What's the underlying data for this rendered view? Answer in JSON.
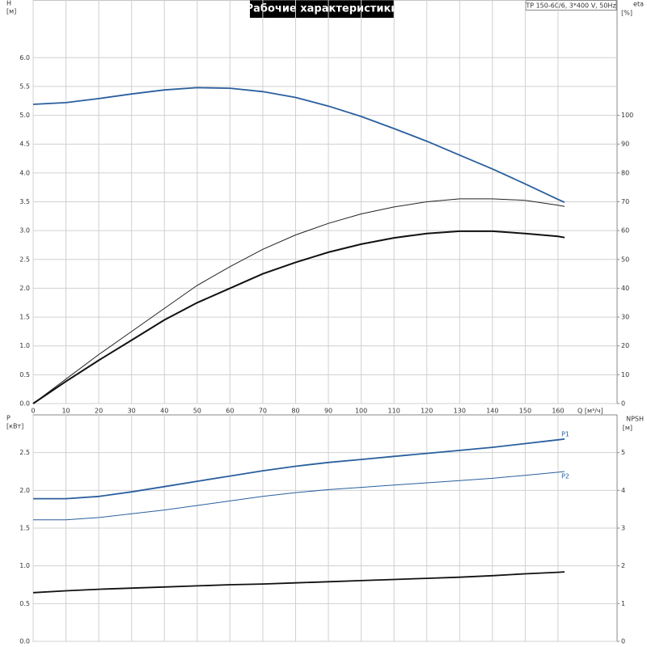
{
  "title": "Рабочие характеристики",
  "annotation": "TP 150-60/6, 3*400 V, 50Hz",
  "chart_data": [
    {
      "type": "line",
      "ylabel": "H",
      "yunit": "[м]",
      "y2label": "eta",
      "y2unit": "[%]",
      "xlabel": "Q [м³/ч]",
      "xlim": [
        0,
        178
      ],
      "xticks": [
        0,
        10,
        20,
        30,
        40,
        50,
        60,
        70,
        80,
        90,
        100,
        110,
        120,
        130,
        140,
        150,
        160
      ],
      "ylim": [
        0,
        7
      ],
      "yticks": [
        {
          "value": 0,
          "label": "0.0"
        },
        0.5,
        {
          "value": 1,
          "label": "1.0"
        },
        1.5,
        {
          "value": 2,
          "label": "2.0"
        },
        2.5,
        {
          "value": 3,
          "label": "3.0"
        },
        3.5,
        {
          "value": 4,
          "label": "4.0"
        },
        4.5,
        {
          "value": 5,
          "label": "5.0"
        },
        5.5,
        {
          "value": 6,
          "label": "6.0"
        }
      ],
      "y2lim": [
        0,
        140
      ],
      "y2ticks": [
        0,
        10,
        20,
        30,
        40,
        50,
        60,
        70,
        80,
        90,
        100
      ],
      "grid": true,
      "x": [
        0,
        10,
        20,
        30,
        40,
        50,
        60,
        70,
        80,
        90,
        100,
        110,
        120,
        130,
        140,
        150,
        160,
        162
      ],
      "series": [
        {
          "color": "#2a5f9e",
          "width": 1.8,
          "values": [
            5.19,
            5.22,
            5.29,
            5.37,
            5.44,
            5.48,
            5.47,
            5.41,
            5.31,
            5.16,
            4.98,
            4.77,
            4.55,
            4.31,
            4.07,
            3.81,
            3.54,
            3.49
          ]
        },
        {
          "color": "#222222",
          "width": 1,
          "axis": "y2",
          "values": [
            0,
            8.5,
            17,
            25,
            33,
            41,
            47.5,
            53.5,
            58.5,
            62.5,
            65.8,
            68.2,
            70,
            71,
            71,
            70.5,
            68.8,
            68.4
          ]
        },
        {
          "color": "#111111",
          "width": 2,
          "axis": "y2",
          "values": [
            0,
            7.7,
            15,
            22,
            29,
            35,
            40,
            45,
            49,
            52.5,
            55.3,
            57.5,
            59,
            59.8,
            59.8,
            59,
            58,
            57.6
          ]
        }
      ]
    },
    {
      "type": "line",
      "ylabel": "P",
      "yunit": "[кВт]",
      "y2label": "NPSH",
      "y2unit": "[м]",
      "ylim": [
        0,
        3
      ],
      "yticks": [
        {
          "value": 0,
          "label": "0.0"
        },
        0.5,
        {
          "value": 1,
          "label": "1.0"
        },
        1.5,
        {
          "value": 2,
          "label": "2.0"
        },
        2.5
      ],
      "y2lim": [
        0,
        6
      ],
      "y2ticks": [
        0,
        1,
        2,
        3,
        4,
        5
      ],
      "grid": true,
      "x": [
        0,
        10,
        20,
        30,
        40,
        50,
        60,
        70,
        80,
        90,
        100,
        110,
        120,
        130,
        140,
        150,
        160,
        162
      ],
      "series": [
        {
          "name": "P1",
          "color": "#2a5f9e",
          "width": 1.8,
          "values": [
            1.89,
            1.89,
            1.92,
            1.98,
            2.05,
            2.12,
            2.19,
            2.26,
            2.32,
            2.37,
            2.41,
            2.45,
            2.49,
            2.53,
            2.57,
            2.62,
            2.67,
            2.68
          ]
        },
        {
          "name": "P2",
          "color": "#2a5f9e",
          "width": 1,
          "values": [
            1.61,
            1.61,
            1.64,
            1.69,
            1.74,
            1.8,
            1.86,
            1.92,
            1.97,
            2.01,
            2.04,
            2.07,
            2.1,
            2.13,
            2.16,
            2.2,
            2.24,
            2.25
          ]
        },
        {
          "color": "#111111",
          "width": 1.8,
          "axis": "y2",
          "values": [
            1.29,
            1.34,
            1.38,
            1.41,
            1.44,
            1.47,
            1.5,
            1.52,
            1.55,
            1.58,
            1.61,
            1.64,
            1.67,
            1.7,
            1.74,
            1.79,
            1.83,
            1.84
          ]
        }
      ]
    }
  ]
}
